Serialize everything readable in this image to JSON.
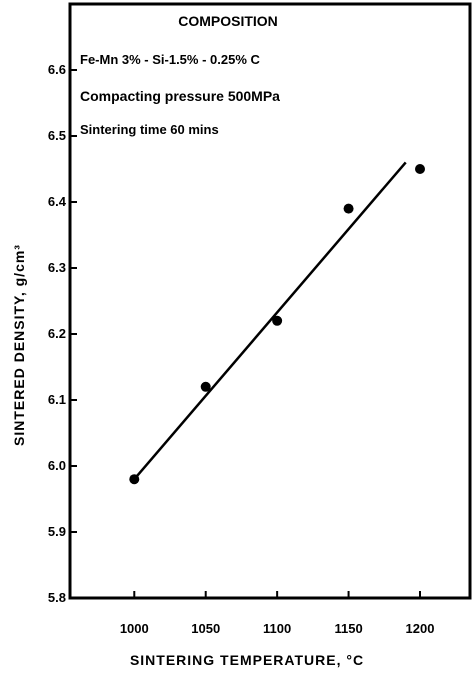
{
  "chart_data": {
    "type": "scatter",
    "xlabel": "SINTERING TEMPERATURE, °C",
    "ylabel": "SINTERED DENSITY, g/cm³",
    "xlim": [
      955,
      1235
    ],
    "ylim": [
      5.8,
      6.7
    ],
    "x_ticks": [
      "1000",
      "1050",
      "1100",
      "1150",
      "1200"
    ],
    "x_tick_values": [
      1000,
      1050,
      1100,
      1150,
      1200
    ],
    "y_ticks": [
      "5.8",
      "5.9",
      "6.0",
      "6.1",
      "6.2",
      "6.3",
      "6.4",
      "6.5",
      "6.6"
    ],
    "y_tick_values": [
      5.8,
      5.9,
      6.0,
      6.1,
      6.2,
      6.3,
      6.4,
      6.5,
      6.6
    ],
    "grid": false,
    "series": [
      {
        "points": [
          {
            "x": 1000,
            "y": 5.98
          },
          {
            "x": 1050,
            "y": 6.12
          },
          {
            "x": 1100,
            "y": 6.22
          },
          {
            "x": 1150,
            "y": 6.39
          },
          {
            "x": 1200,
            "y": 6.45
          }
        ]
      }
    ],
    "trend_line": {
      "x": [
        1000,
        1190
      ],
      "y": [
        5.98,
        6.46
      ]
    },
    "annotations": {
      "heading": "COMPOSITION",
      "composition": "Fe-Mn 3% - Si-1.5% - 0.25% C",
      "pressure": "Compacting pressure 500MPa",
      "time": "Sintering time 60 mins"
    }
  }
}
